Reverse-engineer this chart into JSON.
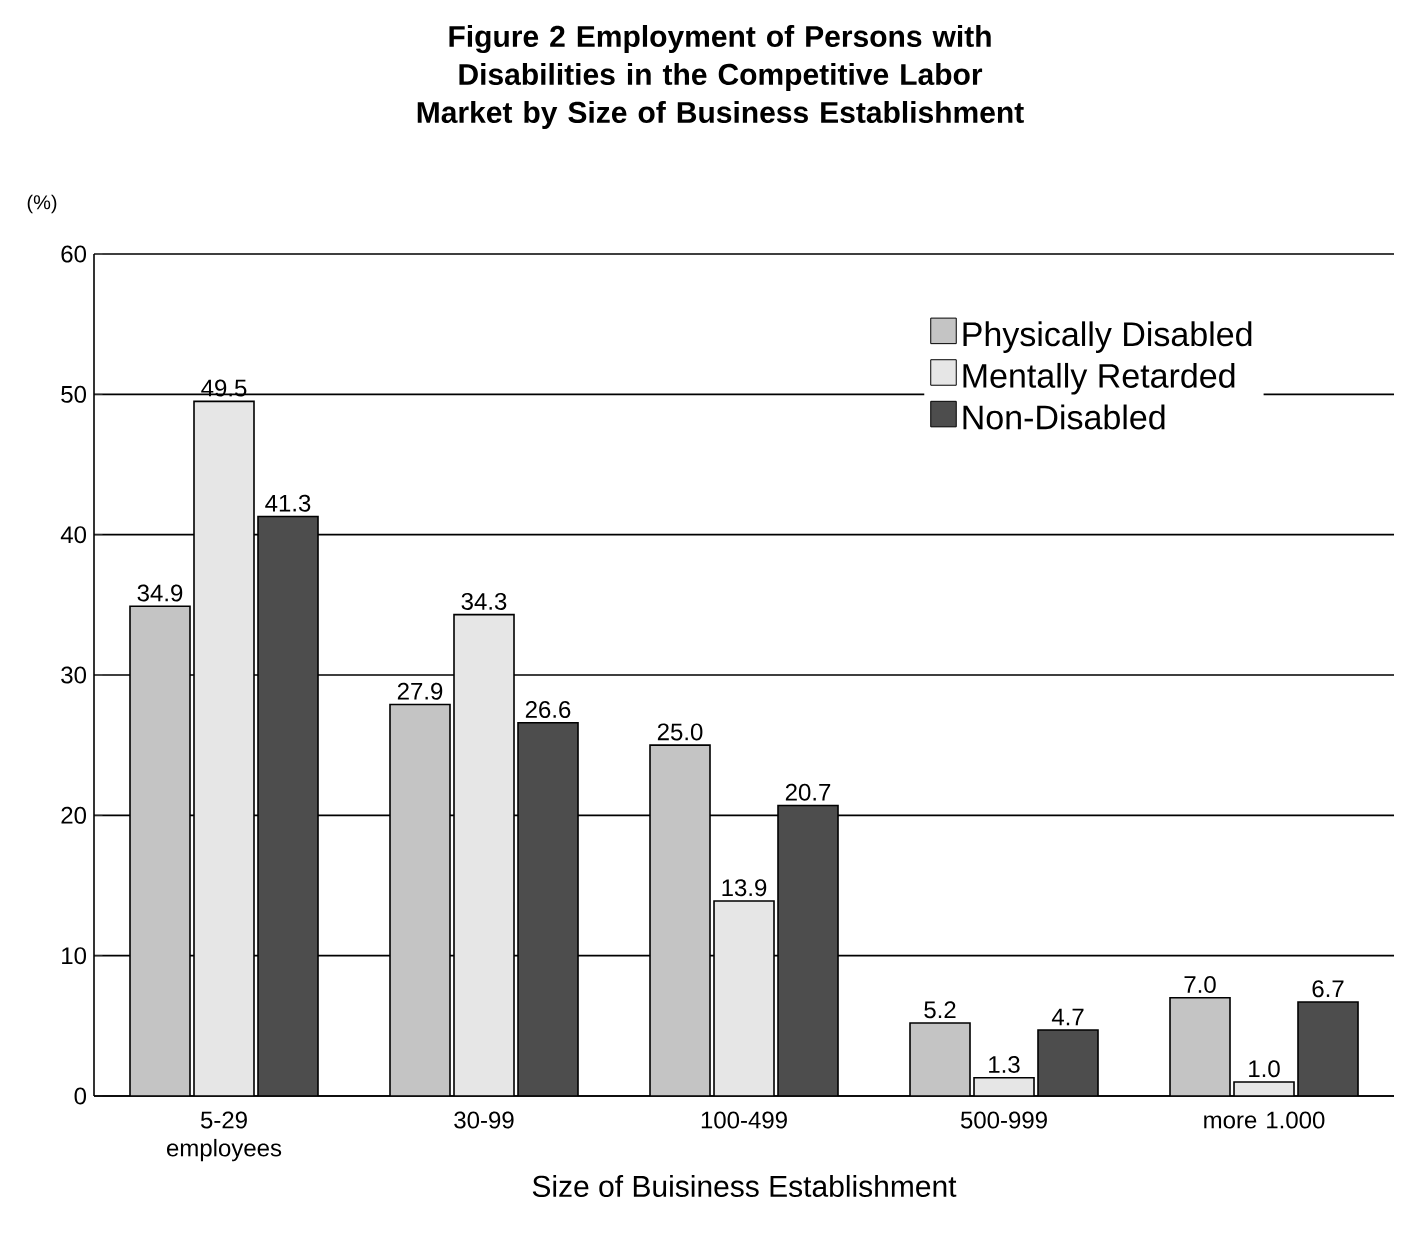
{
  "chart_data": {
    "type": "bar",
    "title": "Figure 2  Employment of Persons with Disabilities in the Competitive Labor Market by Size of Business Establishment",
    "xlabel": "Size of Buisiness Establishment",
    "ylabel": "(%)",
    "categories": [
      "5-29 employees",
      "30-99",
      "100-499",
      "500-999",
      "more 1.000"
    ],
    "series": [
      {
        "name": "Physically Disabled",
        "color": "#c4c4c4",
        "values": [
          34.9,
          27.9,
          25.0,
          5.2,
          7.0
        ],
        "value_labels": [
          "34.9",
          "27.9",
          "25.0",
          "5.2",
          "7.0"
        ]
      },
      {
        "name": "Mentally Retarded",
        "color": "#e6e6e6",
        "values": [
          49.5,
          34.3,
          13.9,
          1.3,
          1.0
        ],
        "value_labels": [
          "49.5",
          "34.3",
          "13.9",
          "1.3",
          "1.0"
        ]
      },
      {
        "name": "Non-Disabled",
        "color": "#4d4d4d",
        "values": [
          41.3,
          26.6,
          20.7,
          4.7,
          6.7
        ],
        "value_labels": [
          "41.3",
          "26.6",
          "20.7",
          "4.7",
          "6.7"
        ]
      }
    ],
    "ylim": [
      0,
      60
    ],
    "yticks": [
      0,
      10,
      20,
      30,
      40,
      50,
      60
    ],
    "grid": "y",
    "legend": "top right"
  }
}
